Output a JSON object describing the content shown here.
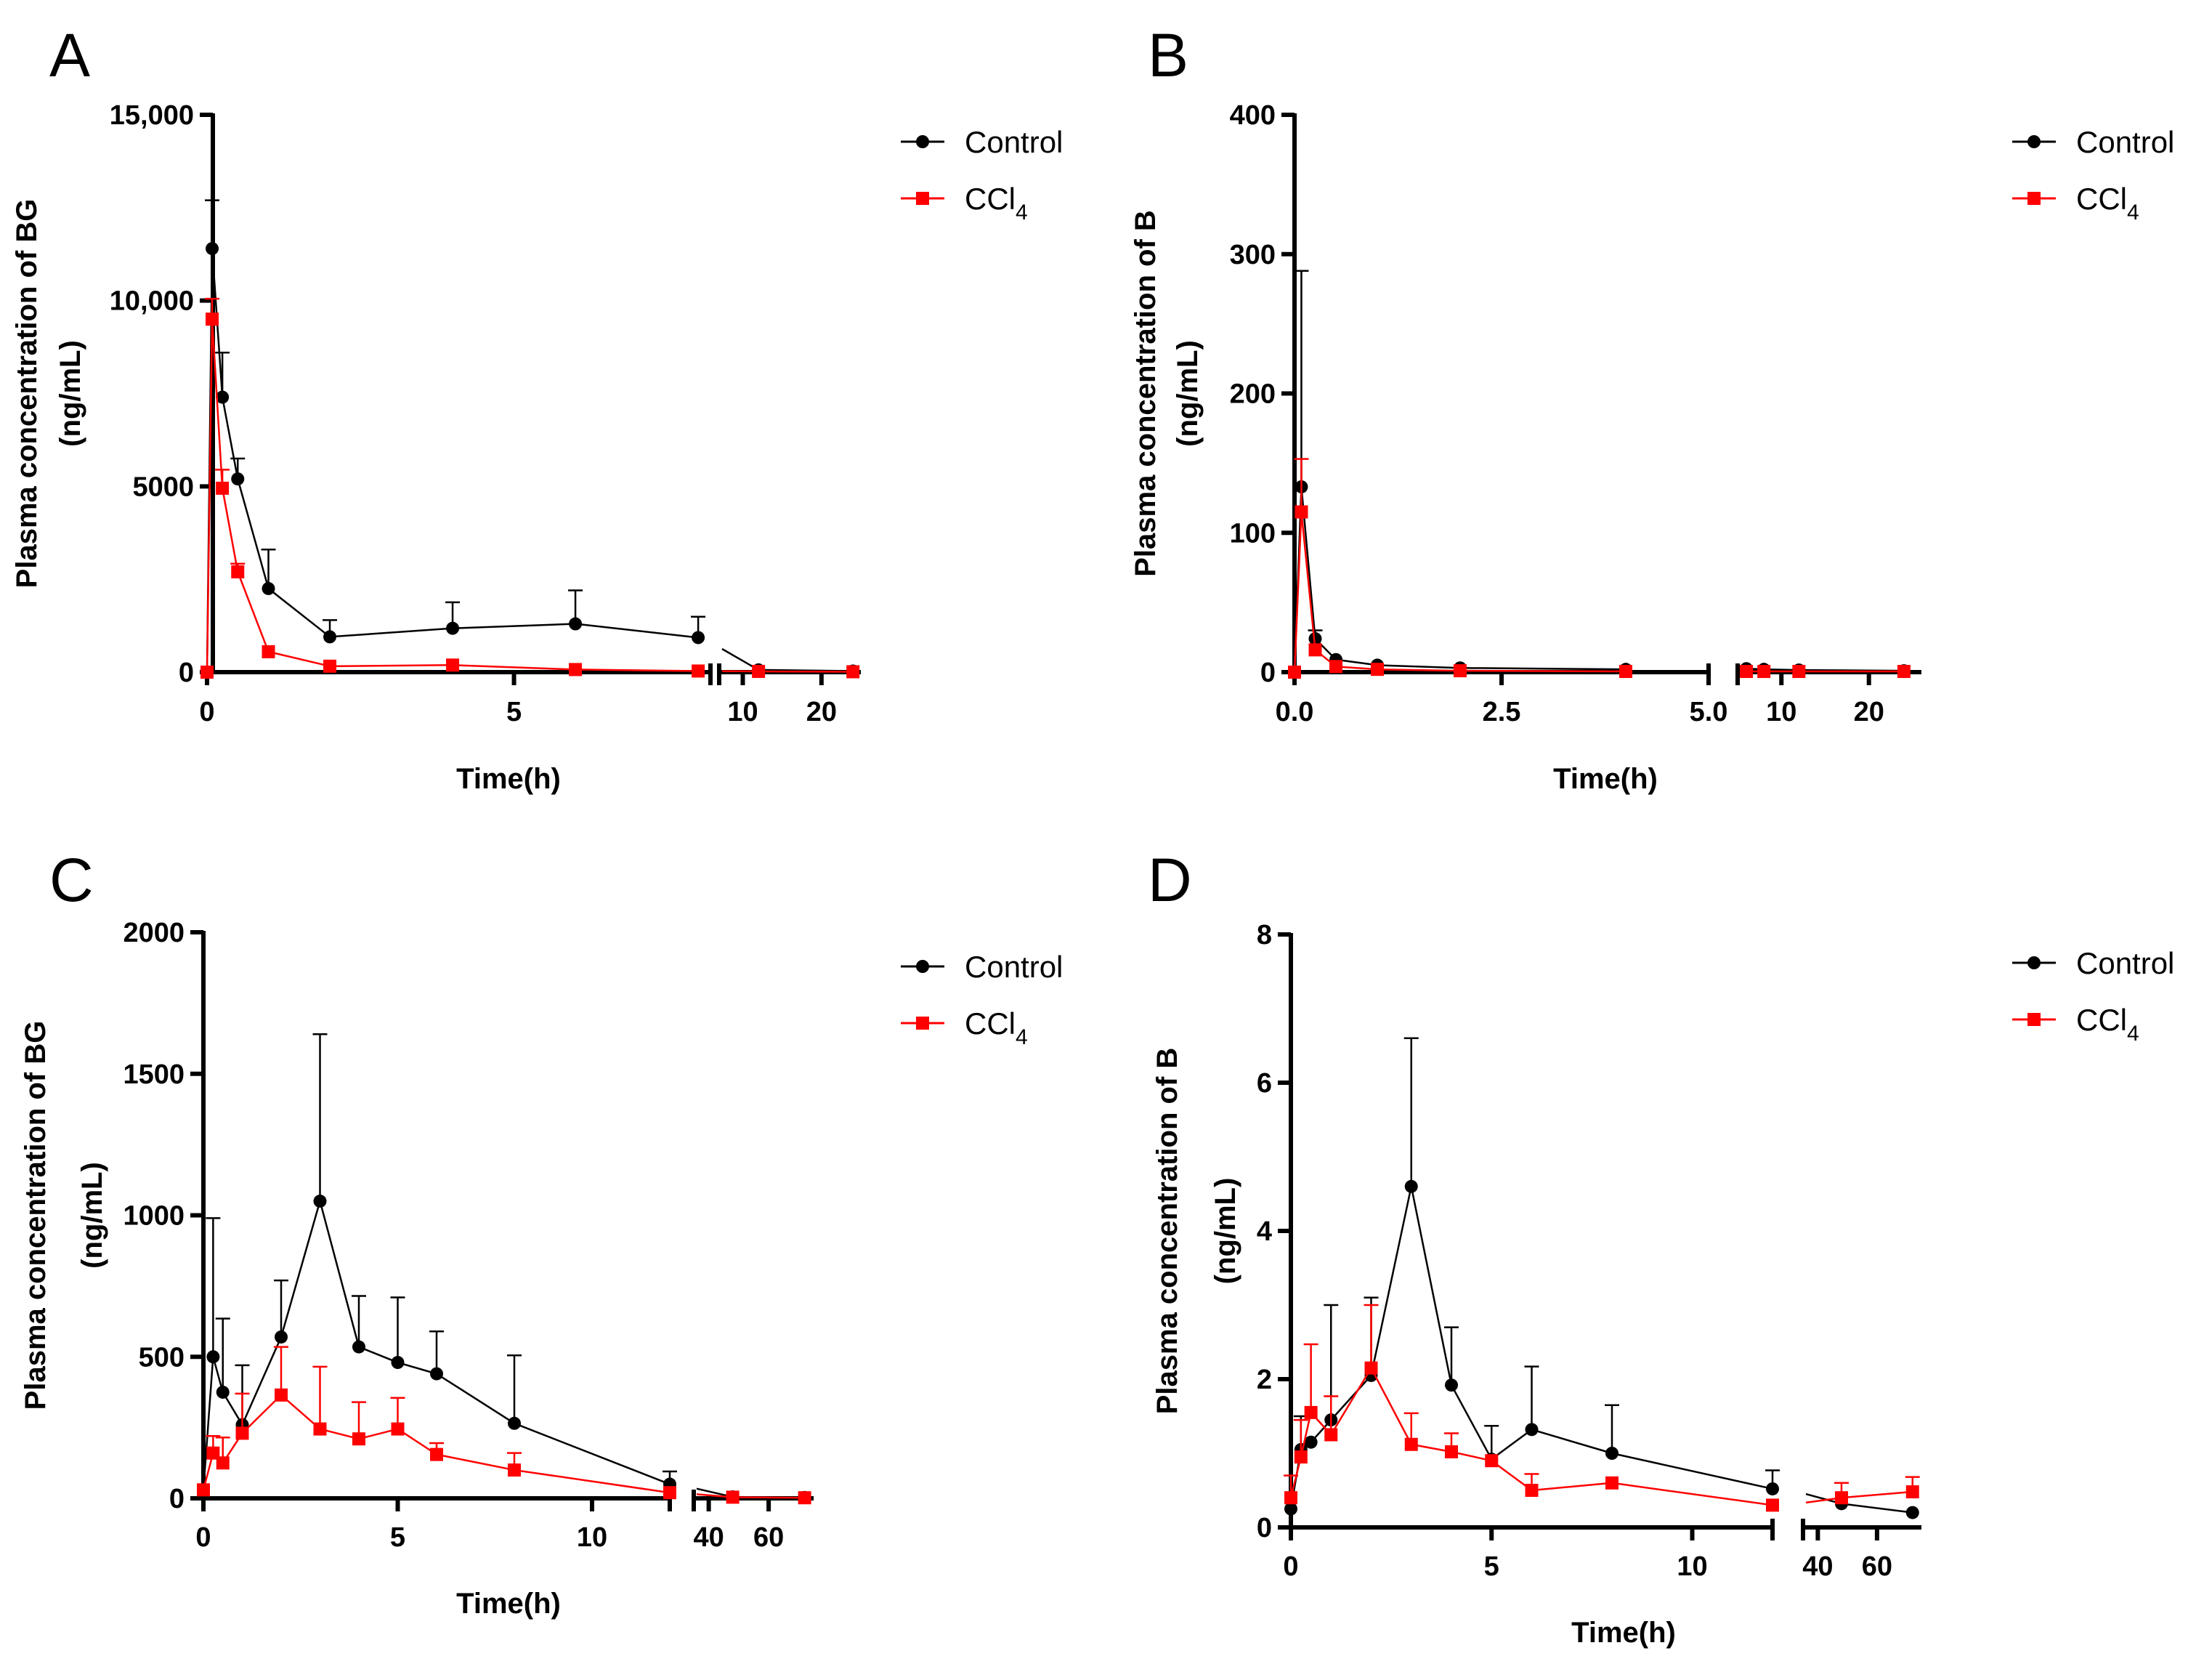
{
  "figure": {
    "colors": {
      "control": "#000000",
      "ccl4": "#ff0000"
    }
  },
  "chart_data": [
    {
      "type": "line",
      "panel": "A",
      "ylabel": "Plasma concentration of BG",
      "ylabel2": "(ng/mL)",
      "xlabel": "Time(h)",
      "ylim": [
        0,
        15000
      ],
      "yticks": [
        {
          "value": 0,
          "label": "0"
        },
        {
          "value": 5000,
          "label": "5000"
        },
        {
          "value": 10000,
          "label": "10,000"
        },
        {
          "value": 15000,
          "label": "15,000"
        }
      ],
      "x_segments": [
        {
          "range": [
            0,
            8.2
          ],
          "ticks": [
            {
              "value": 0,
              "label": "0"
            },
            {
              "value": 5,
              "label": "5"
            }
          ]
        },
        {
          "range": [
            7,
            25
          ],
          "ticks": [
            {
              "value": 10,
              "label": "10"
            },
            {
              "value": 20,
              "label": "20"
            }
          ]
        }
      ],
      "legend": {
        "control": "Control",
        "ccl4_main": "CCl",
        "ccl4_sub": "4"
      },
      "series": [
        {
          "name": "Control",
          "color": "#000000",
          "marker": "circle",
          "x": [
            0,
            0.083,
            0.25,
            0.5,
            1,
            2,
            4,
            6,
            8,
            12,
            24
          ],
          "y": [
            0,
            11400,
            7400,
            5200,
            2250,
            950,
            1180,
            1300,
            930,
            60,
            30
          ],
          "err": [
            0,
            1300,
            1200,
            550,
            1050,
            450,
            700,
            900,
            560,
            0,
            0
          ]
        },
        {
          "name": "CCl4",
          "color": "#ff0000",
          "marker": "square",
          "x": [
            0,
            0.083,
            0.25,
            0.5,
            1,
            2,
            4,
            6,
            8,
            12,
            24
          ],
          "y": [
            0,
            9500,
            4950,
            2700,
            550,
            160,
            190,
            70,
            30,
            20,
            10
          ],
          "err": [
            0,
            550,
            500,
            220,
            0,
            0,
            0,
            0,
            0,
            0,
            0
          ]
        }
      ]
    },
    {
      "type": "line",
      "panel": "B",
      "ylabel": "Plasma concentration of B",
      "ylabel2": "(ng/mL)",
      "xlabel": "Time(h)",
      "ylim": [
        0,
        400
      ],
      "yticks": [
        {
          "value": 0,
          "label": "0"
        },
        {
          "value": 100,
          "label": "100"
        },
        {
          "value": 200,
          "label": "200"
        },
        {
          "value": 300,
          "label": "300"
        },
        {
          "value": 400,
          "label": "400"
        }
      ],
      "x_segments": [
        {
          "range": [
            0,
            5
          ],
          "ticks": [
            {
              "value": 0,
              "label": "0.0"
            },
            {
              "value": 2.5,
              "label": "2.5"
            },
            {
              "value": 5,
              "label": "5.0"
            }
          ]
        },
        {
          "range": [
            5,
            26
          ],
          "ticks": [
            {
              "value": 10,
              "label": "10"
            },
            {
              "value": 20,
              "label": "20"
            }
          ]
        }
      ],
      "legend": {
        "control": "Control",
        "ccl4_main": "CCl",
        "ccl4_sub": "4"
      },
      "series": [
        {
          "name": "Control",
          "color": "#000000",
          "marker": "circle",
          "x": [
            0,
            0.083,
            0.25,
            0.5,
            1,
            2,
            4,
            6,
            8,
            12,
            24
          ],
          "y": [
            0,
            133,
            24,
            9,
            5,
            3,
            2,
            2.5,
            2,
            1.5,
            1
          ],
          "err": [
            0,
            155,
            6,
            0,
            0,
            0,
            0,
            0,
            0,
            0,
            0
          ]
        },
        {
          "name": "CCl4",
          "color": "#ff0000",
          "marker": "square",
          "x": [
            0,
            0.083,
            0.25,
            0.5,
            1,
            2,
            4,
            6,
            8,
            12,
            24
          ],
          "y": [
            0,
            115,
            16,
            4,
            2,
            1,
            0.5,
            0.5,
            0.5,
            0.5,
            0.5
          ],
          "err": [
            0,
            38,
            0,
            0,
            0,
            0,
            0,
            0,
            0,
            0,
            0
          ]
        }
      ]
    },
    {
      "type": "line",
      "panel": "C",
      "ylabel": "Plasma concentration of BG",
      "ylabel2": "(ng/mL)",
      "xlabel": "Time(h)",
      "ylim": [
        0,
        2000
      ],
      "yticks": [
        {
          "value": 0,
          "label": "0"
        },
        {
          "value": 500,
          "label": "500"
        },
        {
          "value": 1000,
          "label": "1000"
        },
        {
          "value": 1500,
          "label": "1500"
        },
        {
          "value": 2000,
          "label": "2000"
        }
      ],
      "x_segments": [
        {
          "range": [
            0,
            12
          ],
          "ticks": [
            {
              "value": 0,
              "label": "0"
            },
            {
              "value": 5,
              "label": "5"
            },
            {
              "value": 10,
              "label": "10"
            }
          ]
        },
        {
          "range": [
            35,
            75
          ],
          "ticks": [
            {
              "value": 40,
              "label": "40"
            },
            {
              "value": 60,
              "label": "60"
            }
          ]
        }
      ],
      "legend": {
        "control": "Control",
        "ccl4_main": "CCl",
        "ccl4_sub": "4"
      },
      "series": [
        {
          "name": "Control",
          "color": "#000000",
          "marker": "circle",
          "x": [
            0,
            0.25,
            0.5,
            1,
            2,
            3,
            4,
            5,
            6,
            8,
            12,
            48,
            72
          ],
          "y": [
            30,
            500,
            375,
            260,
            570,
            1050,
            535,
            480,
            440,
            265,
            50,
            5,
            3
          ],
          "err": [
            0,
            490,
            260,
            210,
            200,
            590,
            180,
            230,
            150,
            240,
            45,
            0,
            0
          ]
        },
        {
          "name": "CCl4",
          "color": "#ff0000",
          "marker": "square",
          "x": [
            0,
            0.25,
            0.5,
            1,
            2,
            3,
            4,
            5,
            6,
            8,
            12,
            48,
            72
          ],
          "y": [
            30,
            160,
            125,
            230,
            365,
            245,
            210,
            245,
            155,
            100,
            20,
            4,
            2
          ],
          "err": [
            0,
            60,
            90,
            140,
            170,
            220,
            130,
            110,
            40,
            60,
            0,
            0,
            0
          ]
        }
      ]
    },
    {
      "type": "line",
      "panel": "D",
      "ylabel": "Plasma concentration of B",
      "ylabel2": "(ng/mL)",
      "xlabel": "Time(h)",
      "ylim": [
        0,
        8
      ],
      "yticks": [
        {
          "value": 0,
          "label": "0"
        },
        {
          "value": 2,
          "label": "2"
        },
        {
          "value": 4,
          "label": "4"
        },
        {
          "value": 6,
          "label": "6"
        },
        {
          "value": 8,
          "label": "8"
        }
      ],
      "x_segments": [
        {
          "range": [
            0,
            12
          ],
          "ticks": [
            {
              "value": 0,
              "label": "0"
            },
            {
              "value": 5,
              "label": "5"
            },
            {
              "value": 10,
              "label": "10"
            }
          ]
        },
        {
          "range": [
            35,
            75
          ],
          "ticks": [
            {
              "value": 40,
              "label": "40"
            },
            {
              "value": 60,
              "label": "60"
            }
          ]
        }
      ],
      "legend": {
        "control": "Control",
        "ccl4_main": "CCl",
        "ccl4_sub": "4"
      },
      "series": [
        {
          "name": "Control",
          "color": "#000000",
          "marker": "circle",
          "x": [
            0,
            0.25,
            0.5,
            1,
            2,
            3,
            4,
            5,
            6,
            8,
            12,
            48,
            72
          ],
          "y": [
            0.25,
            1.05,
            1.15,
            1.45,
            2.05,
            4.6,
            1.92,
            0.92,
            1.32,
            1.0,
            0.52,
            0.32,
            0.2
          ],
          "err": [
            0,
            0.45,
            0,
            1.55,
            1.05,
            2.0,
            0.78,
            0.45,
            0.85,
            0.65,
            0.25,
            0,
            0
          ]
        },
        {
          "name": "CCl4",
          "color": "#ff0000",
          "marker": "square",
          "x": [
            0,
            0.25,
            0.5,
            1,
            2,
            3,
            4,
            5,
            6,
            8,
            12,
            48,
            72
          ],
          "y": [
            0.4,
            0.95,
            1.55,
            1.25,
            2.15,
            1.12,
            1.02,
            0.9,
            0.5,
            0.6,
            0.3,
            0.4,
            0.48
          ],
          "err": [
            0.3,
            0.5,
            0.92,
            0.52,
            0.85,
            0.42,
            0.25,
            0,
            0.22,
            0,
            0,
            0.2,
            0.2
          ]
        }
      ]
    }
  ]
}
